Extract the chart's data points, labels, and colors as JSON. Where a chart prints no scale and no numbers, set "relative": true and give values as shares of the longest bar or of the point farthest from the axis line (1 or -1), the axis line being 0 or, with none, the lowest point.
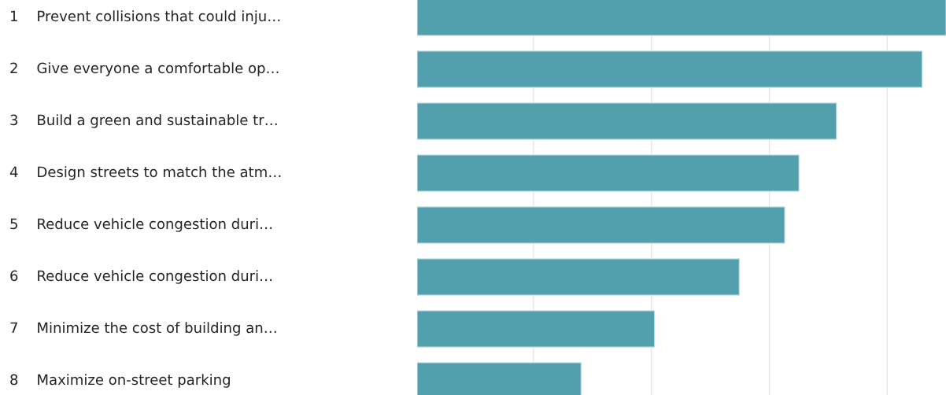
{
  "chart_data": {
    "type": "bar",
    "orientation": "horizontal",
    "relative": true,
    "grid": "x",
    "categories": [
      "1    Prevent collisions that could inju…",
      "2    Give everyone a comfortable op…",
      "3    Build a green and sustainable tr…",
      "4    Design streets to match the atm…",
      "5    Reduce vehicle congestion duri…",
      "6    Reduce vehicle congestion duri…",
      "7    Minimize the cost of building an…",
      "8    Maximize on-street parking"
    ],
    "values": [
      1,
      0.955,
      0.793,
      0.722,
      0.695,
      0.609,
      0.449,
      0.31
    ],
    "color": "#52a0ad"
  }
}
